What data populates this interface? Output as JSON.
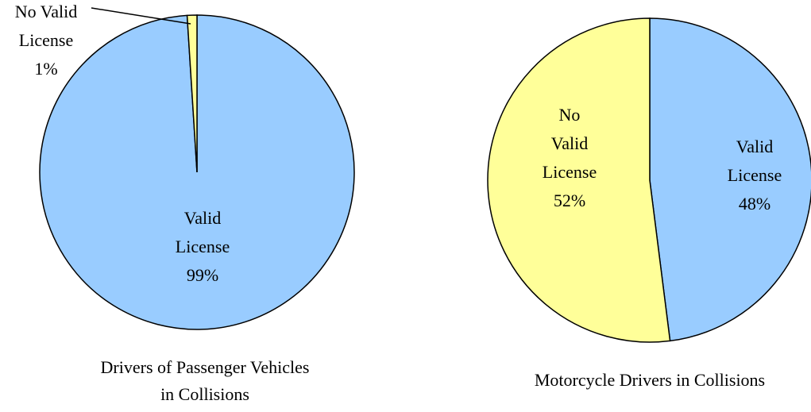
{
  "chart_data": [
    {
      "type": "pie",
      "title": "Drivers of Passenger Vehicles in Collisions",
      "categories": [
        "Valid License",
        "No Valid License"
      ],
      "values": [
        99,
        1
      ],
      "value_labels": [
        "99%",
        "1%"
      ],
      "colors": [
        "#99ccff",
        "#ffff99"
      ]
    },
    {
      "type": "pie",
      "title": "Motorcycle Drivers in Collisions",
      "categories": [
        "Valid License",
        "No Valid License"
      ],
      "values": [
        48,
        52
      ],
      "value_labels": [
        "48%",
        "52%"
      ],
      "colors": [
        "#99ccff",
        "#ffff99"
      ]
    }
  ]
}
